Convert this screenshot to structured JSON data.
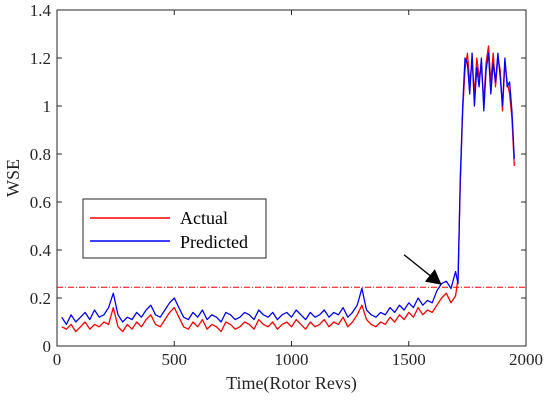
{
  "chart_data": {
    "type": "line",
    "title": "",
    "xlabel": "Time(Rotor Revs)",
    "ylabel": "WSE",
    "xlim": [
      0,
      2000
    ],
    "ylim": [
      0,
      1.4
    ],
    "xticks": [
      0,
      500,
      1000,
      1500,
      2000
    ],
    "yticks": [
      0,
      0.2,
      0.4,
      0.6,
      0.8,
      1,
      1.2,
      1.4
    ],
    "xtick_labels": [
      "0",
      "500",
      "1000",
      "1500",
      "2000"
    ],
    "ytick_labels": [
      "0",
      "0.2",
      "0.4",
      "0.6",
      "0.8",
      "1",
      "1.2",
      "1.4"
    ],
    "grid": false,
    "legend_position": "middle-left",
    "threshold": {
      "y": 0.245,
      "color": "#ff0000",
      "style": "dash-dot"
    },
    "annotation": {
      "type": "arrow",
      "from": [
        1480,
        0.38
      ],
      "to": [
        1640,
        0.255
      ]
    },
    "series": [
      {
        "name": "Actual",
        "color": "#ff0000",
        "x": [
          20,
          40,
          60,
          80,
          100,
          120,
          140,
          160,
          180,
          200,
          220,
          240,
          260,
          280,
          300,
          320,
          340,
          360,
          380,
          400,
          420,
          440,
          460,
          480,
          500,
          520,
          540,
          560,
          580,
          600,
          620,
          640,
          660,
          680,
          700,
          720,
          740,
          760,
          780,
          800,
          820,
          840,
          860,
          880,
          900,
          920,
          940,
          960,
          980,
          1000,
          1020,
          1040,
          1060,
          1080,
          1100,
          1120,
          1140,
          1160,
          1180,
          1200,
          1220,
          1240,
          1260,
          1280,
          1300,
          1320,
          1340,
          1360,
          1380,
          1400,
          1420,
          1440,
          1460,
          1480,
          1500,
          1520,
          1540,
          1560,
          1580,
          1600,
          1620,
          1640,
          1660,
          1680,
          1700,
          1710,
          1720,
          1730,
          1740,
          1750,
          1760,
          1770,
          1780,
          1790,
          1800,
          1810,
          1820,
          1830,
          1840,
          1850,
          1860,
          1870,
          1880,
          1890,
          1900,
          1910,
          1920,
          1930,
          1940,
          1950
        ],
        "y": [
          0.08,
          0.07,
          0.09,
          0.06,
          0.08,
          0.1,
          0.07,
          0.09,
          0.08,
          0.1,
          0.09,
          0.16,
          0.08,
          0.06,
          0.09,
          0.07,
          0.1,
          0.08,
          0.11,
          0.13,
          0.09,
          0.08,
          0.11,
          0.14,
          0.16,
          0.12,
          0.08,
          0.07,
          0.1,
          0.08,
          0.11,
          0.07,
          0.09,
          0.08,
          0.06,
          0.1,
          0.09,
          0.07,
          0.08,
          0.1,
          0.09,
          0.07,
          0.11,
          0.09,
          0.08,
          0.1,
          0.07,
          0.09,
          0.1,
          0.08,
          0.11,
          0.09,
          0.07,
          0.1,
          0.08,
          0.09,
          0.11,
          0.08,
          0.1,
          0.09,
          0.12,
          0.08,
          0.1,
          0.13,
          0.17,
          0.11,
          0.09,
          0.08,
          0.1,
          0.09,
          0.12,
          0.1,
          0.13,
          0.11,
          0.14,
          0.12,
          0.16,
          0.13,
          0.15,
          0.14,
          0.17,
          0.2,
          0.22,
          0.18,
          0.21,
          0.28,
          0.68,
          0.98,
          1.15,
          1.22,
          1.1,
          1.18,
          1.05,
          1.2,
          1.12,
          1.16,
          1.02,
          1.18,
          1.25,
          1.1,
          1.22,
          1.08,
          1.2,
          1.15,
          0.98,
          1.18,
          1.1,
          1.05,
          0.95,
          0.75
        ]
      },
      {
        "name": "Predicted",
        "color": "#0000ff",
        "x": [
          20,
          40,
          60,
          80,
          100,
          120,
          140,
          160,
          180,
          200,
          220,
          240,
          260,
          280,
          300,
          320,
          340,
          360,
          380,
          400,
          420,
          440,
          460,
          480,
          500,
          520,
          540,
          560,
          580,
          600,
          620,
          640,
          660,
          680,
          700,
          720,
          740,
          760,
          780,
          800,
          820,
          840,
          860,
          880,
          900,
          920,
          940,
          960,
          980,
          1000,
          1020,
          1040,
          1060,
          1080,
          1100,
          1120,
          1140,
          1160,
          1180,
          1200,
          1220,
          1240,
          1260,
          1280,
          1300,
          1320,
          1340,
          1360,
          1380,
          1400,
          1420,
          1440,
          1460,
          1480,
          1500,
          1520,
          1540,
          1560,
          1580,
          1600,
          1620,
          1640,
          1660,
          1680,
          1700,
          1710,
          1720,
          1730,
          1740,
          1750,
          1760,
          1770,
          1780,
          1790,
          1800,
          1810,
          1820,
          1830,
          1840,
          1850,
          1860,
          1870,
          1880,
          1890,
          1900,
          1910,
          1920,
          1930,
          1940,
          1950
        ],
        "y": [
          0.12,
          0.09,
          0.13,
          0.1,
          0.12,
          0.14,
          0.11,
          0.15,
          0.12,
          0.13,
          0.16,
          0.22,
          0.13,
          0.1,
          0.12,
          0.11,
          0.14,
          0.12,
          0.15,
          0.17,
          0.13,
          0.12,
          0.15,
          0.18,
          0.2,
          0.16,
          0.12,
          0.11,
          0.14,
          0.12,
          0.15,
          0.11,
          0.13,
          0.12,
          0.1,
          0.14,
          0.13,
          0.11,
          0.12,
          0.14,
          0.13,
          0.11,
          0.15,
          0.13,
          0.12,
          0.14,
          0.11,
          0.13,
          0.14,
          0.12,
          0.15,
          0.13,
          0.11,
          0.14,
          0.12,
          0.13,
          0.15,
          0.12,
          0.14,
          0.13,
          0.16,
          0.12,
          0.14,
          0.17,
          0.24,
          0.15,
          0.13,
          0.12,
          0.14,
          0.13,
          0.16,
          0.14,
          0.17,
          0.15,
          0.18,
          0.16,
          0.2,
          0.17,
          0.19,
          0.18,
          0.23,
          0.26,
          0.27,
          0.24,
          0.31,
          0.26,
          0.7,
          1.0,
          1.2,
          1.18,
          1.05,
          1.22,
          1.0,
          1.16,
          1.08,
          1.2,
          0.98,
          1.15,
          1.22,
          1.05,
          1.18,
          1.1,
          1.22,
          1.12,
          1.0,
          1.2,
          1.08,
          1.1,
          0.98,
          0.78
        ]
      }
    ]
  }
}
